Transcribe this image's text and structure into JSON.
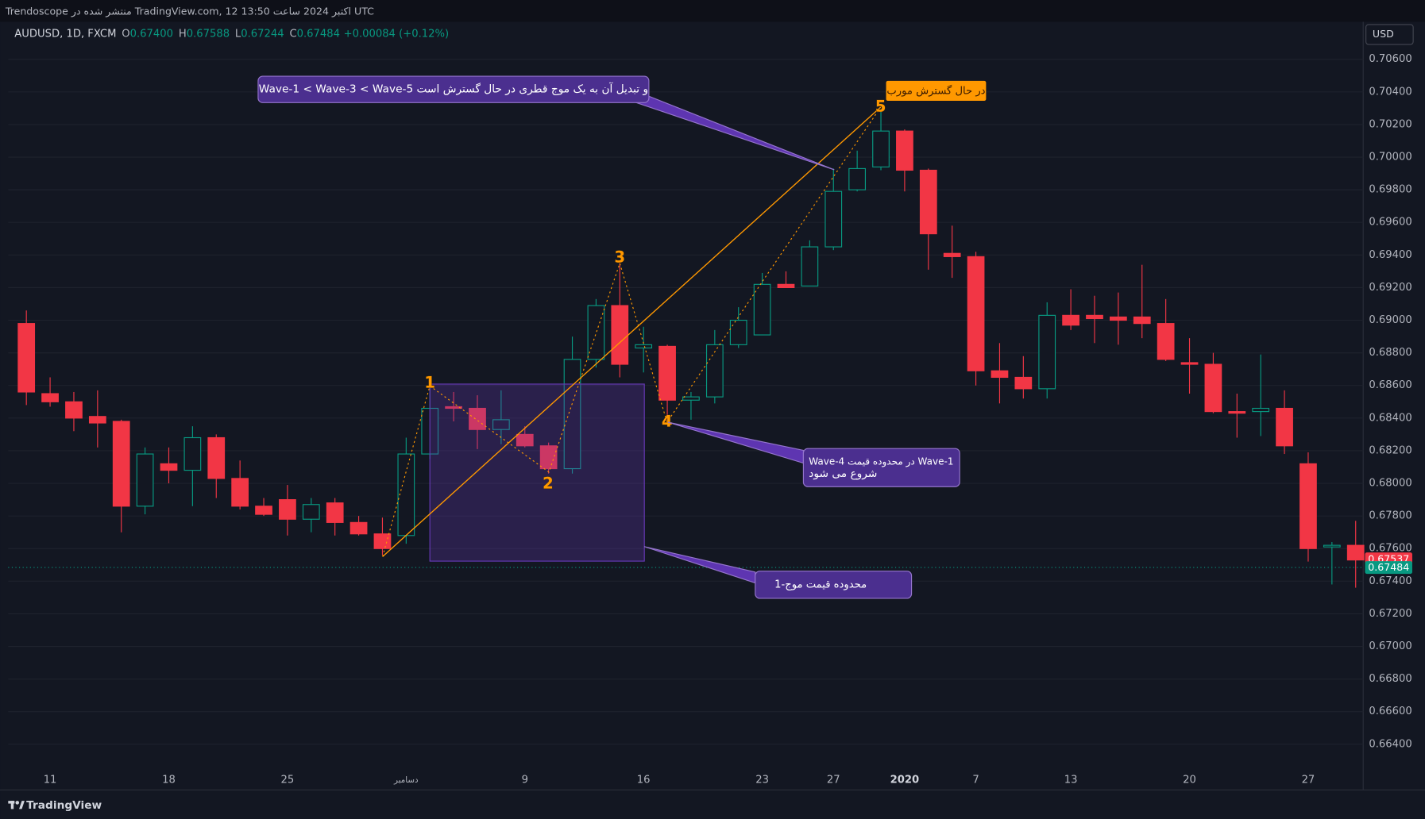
{
  "header": {
    "publisher": "Trendoscope منتشر شده در TradingView.com, 12 اکتبر 2024 ساعت 13:50 UTC",
    "brand": "TradingView",
    "currency": "USD"
  },
  "chart_data": {
    "type": "candlestick",
    "symbol": "AUDUSD, 1D, FXCM",
    "legend_ohlc": [
      {
        "key": "O",
        "value": "0.67400"
      },
      {
        "key": "H",
        "value": "0.67588"
      },
      {
        "key": "L",
        "value": "0.67244"
      },
      {
        "key": "C",
        "value": "0.67484"
      }
    ],
    "legend_change": "+0.00084 (+0.12%)",
    "categories": [
      null,
      "11",
      null,
      null,
      null,
      null,
      "18",
      null,
      null,
      null,
      null,
      "25",
      null,
      null,
      null,
      null,
      "دسامبر",
      null,
      null,
      null,
      null,
      "9",
      null,
      null,
      null,
      null,
      "16",
      null,
      null,
      null,
      null,
      "23",
      null,
      null,
      "27",
      null,
      null,
      "2020",
      null,
      null,
      "7",
      null,
      null,
      null,
      "13",
      null,
      null,
      null,
      null,
      "20",
      null,
      null,
      null,
      null,
      "27",
      null,
      null
    ],
    "open": [
      0.6898,
      0.6855,
      0.685,
      0.6841,
      0.6838,
      0.6786,
      0.6812,
      0.6808,
      0.6828,
      0.6803,
      0.6786,
      0.679,
      0.6778,
      0.6788,
      0.6776,
      0.6769,
      0.6768,
      0.6818,
      0.6847,
      0.6846,
      0.6833,
      0.683,
      0.6823,
      0.6809,
      0.6876,
      0.6909,
      0.6883,
      0.6884,
      0.6851,
      0.6853,
      0.6885,
      0.6891,
      0.6922,
      0.6921,
      0.6945,
      0.698,
      0.6994,
      0.7016,
      0.6992,
      0.6941,
      0.6939,
      0.6869,
      0.6865,
      0.6858,
      0.6903,
      0.6903,
      0.6902,
      0.6902,
      0.6898,
      0.6874,
      0.6873,
      0.6844,
      0.6844,
      0.6846,
      0.6812,
      0.6761,
      0.6762
    ],
    "high": [
      0.6906,
      0.6865,
      0.6856,
      0.6857,
      0.6839,
      0.6822,
      0.6822,
      0.6835,
      0.683,
      0.6814,
      0.6791,
      0.6799,
      0.6791,
      0.6791,
      0.678,
      0.6779,
      0.6828,
      0.686,
      0.6856,
      0.6854,
      0.6857,
      0.6835,
      0.6825,
      0.689,
      0.6913,
      0.6935,
      0.6896,
      0.6885,
      0.6856,
      0.6894,
      0.6908,
      0.6929,
      0.693,
      0.6949,
      0.6993,
      0.7004,
      0.7028,
      0.7017,
      0.6993,
      0.6958,
      0.6942,
      0.6886,
      0.6878,
      0.6911,
      0.6919,
      0.6915,
      0.6917,
      0.6934,
      0.6913,
      0.6889,
      0.688,
      0.6855,
      0.6879,
      0.6857,
      0.6819,
      0.6764,
      0.6777
    ],
    "low": [
      0.6848,
      0.6847,
      0.6832,
      0.6822,
      0.677,
      0.6781,
      0.68,
      0.6786,
      0.6791,
      0.6784,
      0.678,
      0.6768,
      0.677,
      0.6768,
      0.6768,
      0.6756,
      0.6763,
      0.6815,
      0.6838,
      0.6821,
      0.6824,
      0.6822,
      0.6806,
      0.6806,
      0.6871,
      0.6865,
      0.6868,
      0.6836,
      0.6839,
      0.6849,
      0.6883,
      0.6891,
      0.692,
      0.6921,
      0.6943,
      0.6979,
      0.6992,
      0.6979,
      0.6931,
      0.6926,
      0.686,
      0.6849,
      0.6852,
      0.6852,
      0.6894,
      0.6886,
      0.6885,
      0.6889,
      0.6875,
      0.6855,
      0.6843,
      0.6828,
      0.6829,
      0.6818,
      0.6752,
      0.6738,
      0.6736
    ],
    "close": [
      0.6856,
      0.685,
      0.684,
      0.6837,
      0.6786,
      0.6818,
      0.6808,
      0.6828,
      0.6803,
      0.6786,
      0.6781,
      0.6778,
      0.6787,
      0.6776,
      0.6769,
      0.676,
      0.6818,
      0.6846,
      0.6846,
      0.6833,
      0.6839,
      0.6823,
      0.6809,
      0.6876,
      0.6909,
      0.6873,
      0.6885,
      0.6851,
      0.6853,
      0.6885,
      0.69,
      0.6922,
      0.692,
      0.6945,
      0.6979,
      0.6993,
      0.7016,
      0.6992,
      0.6953,
      0.6939,
      0.6869,
      0.6865,
      0.6858,
      0.6903,
      0.6897,
      0.6901,
      0.69,
      0.6898,
      0.6876,
      0.6873,
      0.6844,
      0.6843,
      0.6846,
      0.6823,
      0.676,
      0.6762,
      0.6753
    ],
    "up_color": "#089981",
    "down_color": "#f23645",
    "ylim": [
      0.6612,
      0.7083
    ],
    "yticks": [
      {
        "value": 0.706,
        "label": "0.70600"
      },
      {
        "value": 0.704,
        "label": "0.70400"
      },
      {
        "value": 0.702,
        "label": "0.70200"
      },
      {
        "value": 0.7,
        "label": "0.70000"
      },
      {
        "value": 0.698,
        "label": "0.69800"
      },
      {
        "value": 0.696,
        "label": "0.69600"
      },
      {
        "value": 0.694,
        "label": "0.69400"
      },
      {
        "value": 0.692,
        "label": "0.69200"
      },
      {
        "value": 0.69,
        "label": "0.69000"
      },
      {
        "value": 0.688,
        "label": "0.68800"
      },
      {
        "value": 0.686,
        "label": "0.68600"
      },
      {
        "value": 0.684,
        "label": "0.68400"
      },
      {
        "value": 0.682,
        "label": "0.68200"
      },
      {
        "value": 0.68,
        "label": "0.68000"
      },
      {
        "value": 0.678,
        "label": "0.67800"
      },
      {
        "value": 0.676,
        "label": "0.67600"
      },
      {
        "value": 0.674,
        "label": "0.67400"
      },
      {
        "value": 0.672,
        "label": "0.67200"
      },
      {
        "value": 0.67,
        "label": "0.67000"
      },
      {
        "value": 0.668,
        "label": "0.66800"
      },
      {
        "value": 0.666,
        "label": "0.66600"
      },
      {
        "value": 0.664,
        "label": "0.66400"
      }
    ],
    "grid": true,
    "price_labels": [
      0.67537,
      0.67484
    ],
    "price_label_colors": [
      "#f23645",
      "#089981"
    ],
    "annotations": {
      "waves": [
        "1",
        "2",
        "3",
        "4",
        "5"
      ],
      "diagonal_note": "Wave-1 < Wave-3 < Wave-5 و تبدیل آن به یک موج قطری در حال گسترش است",
      "pattern_tag": "در حال گسترش مورب",
      "wave4_note": [
        "Wave-4 در محدوده قیمت Wave-1",
        "شروع می شود"
      ],
      "range_note": "محدوده قیمت موج-1"
    }
  }
}
